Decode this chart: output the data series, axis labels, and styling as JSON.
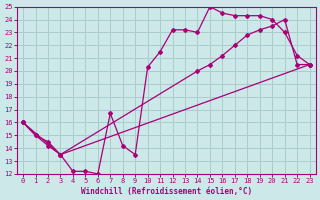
{
  "xlabel": "Windchill (Refroidissement éolien,°C)",
  "bg_color": "#cce8e8",
  "line_color": "#aa0077",
  "grid_color": "#aacccc",
  "xlim": [
    -0.5,
    23.5
  ],
  "ylim": [
    12,
    25
  ],
  "xticks": [
    0,
    1,
    2,
    3,
    4,
    5,
    6,
    7,
    8,
    9,
    10,
    11,
    12,
    13,
    14,
    15,
    16,
    17,
    18,
    19,
    20,
    21,
    22,
    23
  ],
  "yticks": [
    12,
    13,
    14,
    15,
    16,
    17,
    18,
    19,
    20,
    21,
    22,
    23,
    24,
    25
  ],
  "line1_x": [
    0,
    1,
    2,
    3,
    4,
    5,
    6,
    7,
    8,
    9,
    10,
    11,
    12,
    13,
    14,
    15,
    16,
    17,
    18,
    19,
    20,
    21,
    22,
    23
  ],
  "line1_y": [
    16,
    15,
    14.2,
    13.5,
    12.2,
    12.2,
    12.0,
    16.7,
    14.2,
    13.5,
    20.3,
    21.5,
    23.2,
    23.2,
    23.0,
    25.0,
    24.5,
    24.3,
    24.3,
    24.3,
    24.0,
    23.0,
    21.2,
    20.5
  ],
  "line2_x": [
    0,
    1,
    2,
    3,
    14,
    15,
    16,
    17,
    18,
    19,
    20,
    21,
    22,
    23
  ],
  "line2_y": [
    16,
    15.0,
    14.5,
    13.5,
    20.0,
    20.5,
    21.2,
    22.0,
    22.8,
    23.2,
    23.5,
    24.0,
    20.5,
    20.5
  ],
  "line3_x": [
    0,
    3,
    23
  ],
  "line3_y": [
    16,
    13.5,
    20.5
  ]
}
